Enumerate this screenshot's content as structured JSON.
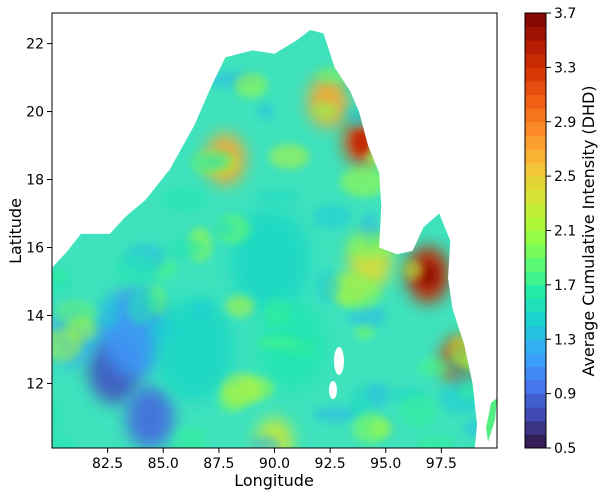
{
  "chart_data": {
    "type": "heatmap",
    "title": "",
    "xlabel": "Longitude",
    "ylabel": "Latitude",
    "xlim": [
      80.0,
      100.0
    ],
    "ylim": [
      10.1,
      22.9
    ],
    "xticks": [
      "82.5",
      "85.0",
      "87.5",
      "90.0",
      "92.5",
      "95.0",
      "97.5"
    ],
    "yticks": [
      "12",
      "14",
      "16",
      "18",
      "20",
      "22"
    ],
    "colorbar": {
      "label": "Average Cumulative Intensity (DHD)",
      "min": 0.5,
      "max": 3.7,
      "levels": 32,
      "ticks": [
        "0.5",
        "0.9",
        "1.3",
        "1.7",
        "2.1",
        "2.5",
        "2.9",
        "3.3",
        "3.7"
      ]
    },
    "region_boundary": [
      [
        80.0,
        15.4
      ],
      [
        80.7,
        15.9
      ],
      [
        81.3,
        16.4
      ],
      [
        82.6,
        16.4
      ],
      [
        83.3,
        16.9
      ],
      [
        84.2,
        17.4
      ],
      [
        85.3,
        18.3
      ],
      [
        86.4,
        19.6
      ],
      [
        87.2,
        20.8
      ],
      [
        87.8,
        21.6
      ],
      [
        89.0,
        21.8
      ],
      [
        90.0,
        21.7
      ],
      [
        91.0,
        22.1
      ],
      [
        91.6,
        22.4
      ],
      [
        92.2,
        22.3
      ],
      [
        92.7,
        21.3
      ],
      [
        93.4,
        20.6
      ],
      [
        93.8,
        20.0
      ],
      [
        94.2,
        19.0
      ],
      [
        94.7,
        18.2
      ],
      [
        94.8,
        17.2
      ],
      [
        94.7,
        16.0
      ],
      [
        95.5,
        15.8
      ],
      [
        96.2,
        15.9
      ],
      [
        96.7,
        16.6
      ],
      [
        97.4,
        17.0
      ],
      [
        97.9,
        16.2
      ],
      [
        97.8,
        15.1
      ],
      [
        98.0,
        14.2
      ],
      [
        98.5,
        13.2
      ],
      [
        98.9,
        12.0
      ],
      [
        99.1,
        10.8
      ],
      [
        99.0,
        10.1
      ],
      [
        80.0,
        10.1
      ]
    ],
    "intensity_features": [
      {
        "lon": 82.8,
        "lat": 12.4,
        "value": 0.8
      },
      {
        "lon": 84.4,
        "lat": 11.0,
        "value": 0.9
      },
      {
        "lon": 83.7,
        "lat": 13.5,
        "value": 1.1
      },
      {
        "lon": 80.9,
        "lat": 13.4,
        "value": 1.2
      },
      {
        "lon": 86.4,
        "lat": 13.0,
        "value": 1.5
      },
      {
        "lon": 89.8,
        "lat": 15.6,
        "value": 1.5
      },
      {
        "lon": 90.8,
        "lat": 13.1,
        "value": 1.6
      },
      {
        "lon": 87.8,
        "lat": 18.6,
        "value": 2.7
      },
      {
        "lon": 92.4,
        "lat": 20.3,
        "value": 2.7
      },
      {
        "lon": 93.9,
        "lat": 19.1,
        "value": 3.2
      },
      {
        "lon": 96.9,
        "lat": 15.2,
        "value": 3.4
      },
      {
        "lon": 98.3,
        "lat": 12.7,
        "value": 3.2
      },
      {
        "lon": 94.3,
        "lat": 15.6,
        "value": 2.4
      },
      {
        "lon": 90.0,
        "lat": 10.3,
        "value": 2.3
      }
    ]
  }
}
